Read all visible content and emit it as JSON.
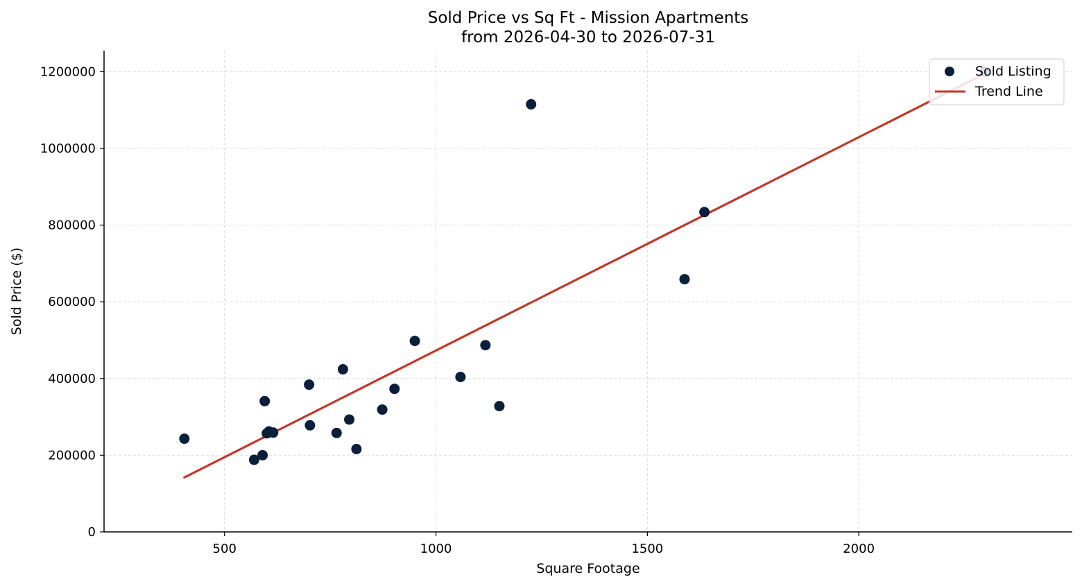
{
  "chart_data": {
    "type": "scatter",
    "title": "Sold Price vs Sq Ft - Mission Apartments",
    "subtitle": "from 2026-04-30 to 2026-07-31",
    "xlabel": "Square Footage",
    "ylabel": "Sold Price ($)",
    "xlim": [
      215,
      2505
    ],
    "ylim": [
      0,
      1255000
    ],
    "xticks": [
      500,
      1000,
      1500,
      2000
    ],
    "yticks": [
      0,
      200000,
      400000,
      600000,
      800000,
      1000000,
      1200000
    ],
    "grid": true,
    "legend_position": "top-right",
    "colors": {
      "points": "#0b1f3a",
      "trend": "#c0392b"
    },
    "series": [
      {
        "name": "Sold Listing",
        "kind": "scatter",
        "x": [
          405,
          570,
          590,
          595,
          600,
          605,
          615,
          700,
          702,
          765,
          780,
          795,
          812,
          873,
          902,
          950,
          1058,
          1117,
          1150,
          1225,
          1588,
          1635,
          2298
        ],
        "y": [
          243000,
          188000,
          200000,
          341000,
          257000,
          262000,
          259000,
          384000,
          278000,
          258000,
          424000,
          293000,
          216000,
          319000,
          373000,
          498000,
          404000,
          487000,
          328000,
          1115000,
          659000,
          834000,
          1200000
        ]
      },
      {
        "name": "Trend Line",
        "kind": "line",
        "x": [
          405,
          2298
        ],
        "y": [
          142000,
          1195000
        ]
      }
    ]
  }
}
